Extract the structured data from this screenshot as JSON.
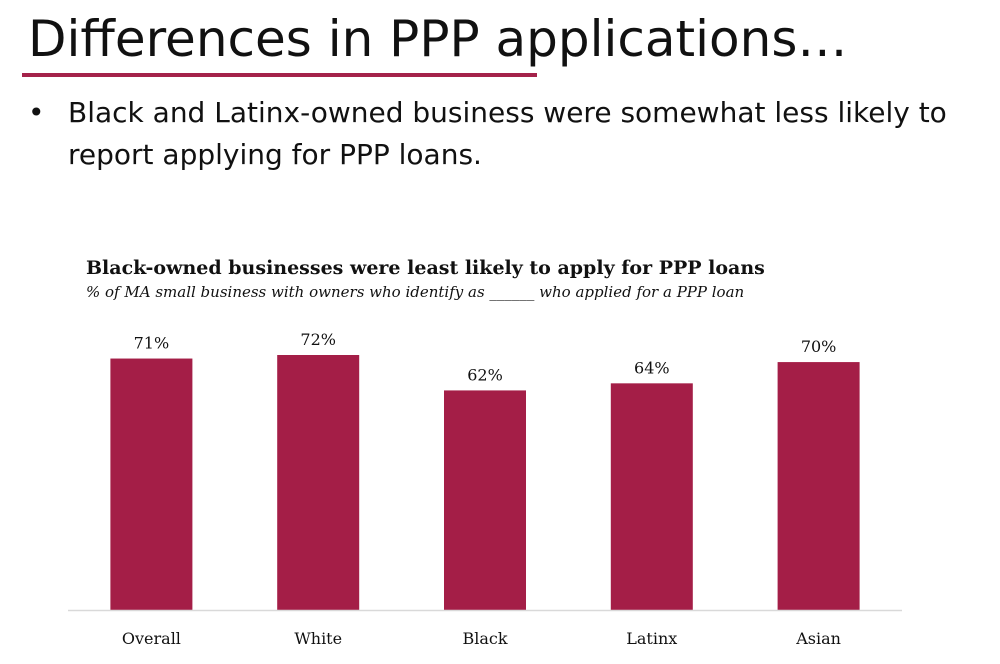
{
  "slide": {
    "title": "Differences in PPP applications…",
    "bullets": [
      {
        "marker": "•",
        "text": "Black and Latinx-owned business were somewhat less likely to report applying for PPP loans."
      }
    ]
  },
  "colors": {
    "accent": "#a4224a",
    "bar": "#a41e47",
    "axis": "#d9d9d9"
  },
  "chart_data": {
    "type": "bar",
    "title": "Black-owned businesses were least likely to apply for PPP loans",
    "subtitle": "% of MA small business with owners who identify as ______ who applied for a PPP loan",
    "categories": [
      "Overall",
      "White",
      "Black",
      "Latinx",
      "Asian"
    ],
    "values": [
      71,
      72,
      62,
      64,
      70
    ],
    "data_labels": [
      "71%",
      "72%",
      "62%",
      "64%",
      "70%"
    ],
    "xlabel": "",
    "ylabel": "",
    "ylim": [
      0,
      72
    ],
    "grid": false,
    "legend": "none"
  }
}
